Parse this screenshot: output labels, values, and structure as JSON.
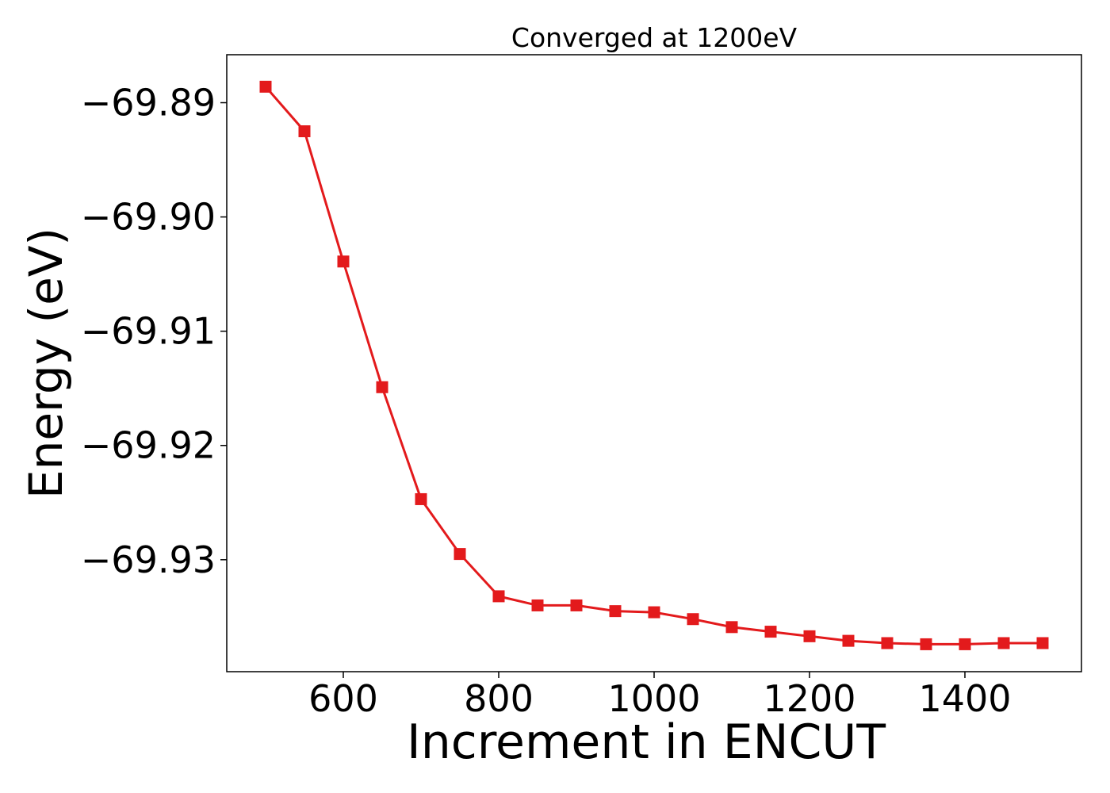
{
  "chart_data": {
    "type": "line",
    "title": "Converged at 1200eV",
    "xlabel": "Increment in ENCUT",
    "ylabel": "Energy (eV)",
    "xlim": [
      450,
      1550
    ],
    "ylim": [
      -69.9398,
      -69.8858
    ],
    "xticks": [
      600,
      800,
      1000,
      1200,
      1400
    ],
    "yticks": [
      -69.89,
      -69.9,
      -69.91,
      -69.92,
      -69.93
    ],
    "ytick_labels": [
      "−69.89",
      "−69.90",
      "−69.91",
      "−69.92",
      "−69.93"
    ],
    "grid": false,
    "color": "#e31a1c",
    "marker": "square",
    "x": [
      500,
      550,
      600,
      650,
      700,
      750,
      800,
      850,
      900,
      950,
      1000,
      1050,
      1100,
      1150,
      1200,
      1250,
      1300,
      1350,
      1400,
      1450,
      1500
    ],
    "y": [
      -69.8886,
      -69.8925,
      -69.9039,
      -69.9149,
      -69.9247,
      -69.9295,
      -69.9332,
      -69.934,
      -69.934,
      -69.9345,
      -69.9346,
      -69.9352,
      -69.9359,
      -69.9363,
      -69.9367,
      -69.9371,
      -69.9373,
      -69.9374,
      -69.9374,
      -69.9373,
      -69.9373
    ]
  }
}
